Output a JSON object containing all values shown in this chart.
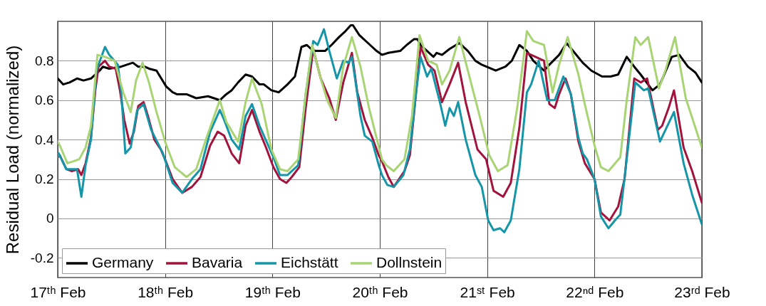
{
  "chart_data": {
    "type": "line",
    "ylabel": "Residual Load (normalized)",
    "xlim": [
      "--02-17",
      "--02-23"
    ],
    "ylim": [
      -0.3,
      1.0
    ],
    "xticks": [
      {
        "value": "--02-17",
        "label": "17ᵗʰ Feb"
      },
      {
        "value": "--02-18",
        "label": "18ᵗʰ Feb"
      },
      {
        "value": "--02-19",
        "label": "19ᵗʰ Feb"
      },
      {
        "value": "--02-20",
        "label": "20ᵗʰ Feb"
      },
      {
        "value": "--02-21",
        "label": "21ˢᵗ Feb"
      },
      {
        "value": "--02-22",
        "label": "22ⁿᵈ Feb"
      },
      {
        "value": "--02-23",
        "label": "23ʳᵈ Feb"
      }
    ],
    "yticks": [
      -0.2,
      0,
      0.2,
      0.4,
      0.6,
      0.8
    ],
    "grid": true,
    "legend": "bottom left",
    "line_style": "solid",
    "marker": "none",
    "series": [
      {
        "name": "Germany",
        "color": "#000000",
        "x": [
          "--02-17T00:00",
          "--02-17T01:12",
          "--02-17T02:38",
          "--02-17T04:19",
          "--02-17T05:46",
          "--02-17T07:26",
          "--02-17T09:22",
          "--02-17T10:05",
          "--02-17T11:31",
          "--02-17T14:10",
          "--02-17T16:48",
          "--02-17T18:00",
          "--02-17T19:26",
          "--02-17T20:24",
          "--02-17T22:05",
          "--02-18T00:14",
          "--02-18T01:41",
          "--02-18T02:38",
          "--02-18T04:48",
          "--02-18T06:58",
          "--02-18T09:36",
          "--02-18T12:14",
          "--02-18T13:41",
          "--02-18T14:53",
          "--02-18T16:19",
          "--02-18T18:00",
          "--02-18T19:26",
          "--02-18T21:07",
          "--02-18T22:05",
          "--02-18T23:46",
          "--02-19T01:26",
          "--02-19T03:22",
          "--02-19T05:02",
          "--02-19T06:29",
          "--02-19T07:41",
          "--02-19T08:38",
          "--02-19T09:36",
          "--02-19T11:46",
          "--02-19T13:12",
          "--02-19T14:53",
          "--02-19T16:19",
          "--02-19T17:31",
          "--02-19T18:00",
          "--02-19T19:26",
          "--02-19T21:50",
          "--02-19T23:17",
          "--02-20T00:29",
          "--02-20T01:55",
          "--02-20T04:34",
          "--02-20T06:00",
          "--02-20T07:41",
          "--02-20T08:24",
          "--02-20T09:07",
          "--02-20T12:00",
          "--02-20T12:43",
          "--02-20T13:55",
          "--02-20T15:36",
          "--02-20T17:46",
          "--02-20T19:41",
          "--02-20T21:22",
          "--02-20T22:48",
          "--02-21T01:55",
          "--02-21T04:05",
          "--02-21T05:31",
          "--02-21T07:12",
          "--02-21T08:53",
          "--02-21T10:19",
          "--02-21T12:43",
          "--02-21T13:55",
          "--02-21T16:05",
          "--02-21T17:46",
          "--02-21T19:12",
          "--02-21T21:22",
          "--02-21T23:17",
          "--02-22T01:41",
          "--02-22T03:36",
          "--02-22T05:17",
          "--02-22T07:12",
          "--02-22T08:53",
          "--02-22T10:19",
          "--02-22T12:58",
          "--02-22T14:38",
          "--02-22T17:17",
          "--02-22T18:58",
          "--02-22T20:53",
          "--02-22T22:34",
          "--02-23T00:00"
        ],
        "values": [
          0.71,
          0.68,
          0.69,
          0.71,
          0.7,
          0.71,
          0.75,
          0.77,
          0.76,
          0.77,
          0.79,
          0.77,
          0.77,
          0.76,
          0.75,
          0.67,
          0.64,
          0.63,
          0.63,
          0.61,
          0.62,
          0.6,
          0.63,
          0.65,
          0.69,
          0.73,
          0.72,
          0.68,
          0.68,
          0.65,
          0.64,
          0.68,
          0.72,
          0.87,
          0.88,
          0.86,
          0.85,
          0.85,
          0.88,
          0.92,
          0.95,
          0.98,
          0.98,
          0.93,
          0.88,
          0.85,
          0.83,
          0.84,
          0.85,
          0.88,
          0.91,
          0.91,
          0.88,
          0.82,
          0.84,
          0.83,
          0.86,
          0.89,
          0.85,
          0.8,
          0.78,
          0.75,
          0.77,
          0.8,
          0.88,
          0.85,
          0.8,
          0.75,
          0.78,
          0.83,
          0.89,
          0.85,
          0.79,
          0.75,
          0.72,
          0.72,
          0.73,
          0.82,
          0.77,
          0.73,
          0.65,
          0.68,
          0.82,
          0.83,
          0.77,
          0.74,
          0.69
        ]
      },
      {
        "name": "Bavaria",
        "color": "#a2143c",
        "x": [
          "--02-17T00:00",
          "--02-17T00:29",
          "--02-17T01:55",
          "--02-17T03:07",
          "--02-17T04:34",
          "--02-17T05:17",
          "--02-17T06:14",
          "--02-17T07:26",
          "--02-17T08:24",
          "--02-17T09:07",
          "--02-17T10:34",
          "--02-17T11:31",
          "--02-17T12:58",
          "--02-17T13:55",
          "--02-17T14:53",
          "--02-17T16:05",
          "--02-17T17:02",
          "--02-17T18:00",
          "--02-17T19:12",
          "--02-17T20:10",
          "--02-17T21:36",
          "--02-17T23:02",
          "--02-18T00:00",
          "--02-18T01:41",
          "--02-18T03:50",
          "--02-18T06:00",
          "--02-18T07:55",
          "--02-18T10:05",
          "--02-18T11:46",
          "--02-18T13:12",
          "--02-18T14:53",
          "--02-18T16:34",
          "--02-18T18:00",
          "--02-18T19:26",
          "--02-18T21:07",
          "--02-18T22:34",
          "--02-19T00:14",
          "--02-19T01:41",
          "--02-19T03:07",
          "--02-19T04:19",
          "--02-19T06:00",
          "--02-19T07:26",
          "--02-19T09:07",
          "--02-19T10:48",
          "--02-19T12:43",
          "--02-19T14:10",
          "--02-19T15:50",
          "--02-19T17:46",
          "--02-19T18:58",
          "--02-19T20:38",
          "--02-19T22:19",
          "--02-19T23:46",
          "--02-20T00:29",
          "--02-20T01:55",
          "--02-20T03:07",
          "--02-20T05:31",
          "--02-20T06:43",
          "--02-20T08:10",
          "--02-20T09:07",
          "--02-20T10:48",
          "--02-20T12:14",
          "--02-20T13:55",
          "--02-20T15:36",
          "--02-20T17:31",
          "--02-20T19:12",
          "--02-20T21:50",
          "--02-20T23:46",
          "--02-21T01:26",
          "--02-21T03:36",
          "--02-21T05:17",
          "--02-21T07:12",
          "--02-21T08:53",
          "--02-21T10:48",
          "--02-21T12:43",
          "--02-21T13:55",
          "--02-21T15:07",
          "--02-21T16:05",
          "--02-21T17:31",
          "--02-21T18:43",
          "--02-21T20:24",
          "--02-21T21:50",
          "--02-22T00:00",
          "--02-22T01:26",
          "--02-22T03:22",
          "--02-22T05:17",
          "--02-22T06:43",
          "--02-22T08:53",
          "--02-22T10:19",
          "--02-22T11:46",
          "--02-22T14:10",
          "--02-22T15:07",
          "--02-22T16:34",
          "--02-22T17:46",
          "--02-22T19:55",
          "--02-22T21:50",
          "--02-23T00:00"
        ],
        "values": [
          0.31,
          0.32,
          0.25,
          0.24,
          0.25,
          0.22,
          0.28,
          0.41,
          0.65,
          0.77,
          0.8,
          0.77,
          0.76,
          0.65,
          0.5,
          0.38,
          0.44,
          0.57,
          0.59,
          0.52,
          0.4,
          0.35,
          0.3,
          0.2,
          0.13,
          0.16,
          0.21,
          0.37,
          0.44,
          0.42,
          0.33,
          0.28,
          0.47,
          0.55,
          0.44,
          0.36,
          0.26,
          0.2,
          0.18,
          0.21,
          0.26,
          0.56,
          0.86,
          0.71,
          0.61,
          0.5,
          0.69,
          0.84,
          0.64,
          0.5,
          0.41,
          0.32,
          0.29,
          0.21,
          0.16,
          0.24,
          0.32,
          0.65,
          0.87,
          0.78,
          0.75,
          0.59,
          0.68,
          0.79,
          0.59,
          0.35,
          0.3,
          0.14,
          0.11,
          0.18,
          0.46,
          0.84,
          0.82,
          0.8,
          0.58,
          0.56,
          0.63,
          0.71,
          0.63,
          0.39,
          0.28,
          0.2,
          0.03,
          -0.01,
          0.06,
          0.2,
          0.71,
          0.69,
          0.71,
          0.45,
          0.47,
          0.56,
          0.65,
          0.36,
          0.24,
          0.08
        ]
      },
      {
        "name": "Eichstätt",
        "color": "#1596a8",
        "x": [
          "--02-17T00:00",
          "--02-17T00:14",
          "--02-17T01:55",
          "--02-17T04:19",
          "--02-17T05:17",
          "--02-17T06:14",
          "--02-17T07:26",
          "--02-17T08:38",
          "--02-17T10:05",
          "--02-17T10:34",
          "--02-17T11:31",
          "--02-17T13:26",
          "--02-17T14:10",
          "--02-17T15:07",
          "--02-17T16:19",
          "--02-17T17:46",
          "--02-17T19:12",
          "--02-17T20:53",
          "--02-17T23:31",
          "--02-18T01:41",
          "--02-18T03:50",
          "--02-18T06:00",
          "--02-18T07:55",
          "--02-18T10:05",
          "--02-18T12:14",
          "--02-18T13:12",
          "--02-18T14:53",
          "--02-18T16:34",
          "--02-18T18:00",
          "--02-18T19:26",
          "--02-18T21:07",
          "--02-19T00:14",
          "--02-19T01:41",
          "--02-19T03:22",
          "--02-19T05:46",
          "--02-19T07:26",
          "--02-19T09:07",
          "--02-19T10:05",
          "--02-19T11:31",
          "--02-19T12:43",
          "--02-19T14:24",
          "--02-19T15:50",
          "--02-19T17:02",
          "--02-19T17:46",
          "--02-19T19:41",
          "--02-19T20:38",
          "--02-19T22:19",
          "--02-19T23:46",
          "--02-20T00:29",
          "--02-20T01:41",
          "--02-20T03:07",
          "--02-20T05:17",
          "--02-20T06:43",
          "--02-20T08:10",
          "--02-20T09:07",
          "--02-20T10:34",
          "--02-20T11:31",
          "--02-20T13:26",
          "--02-20T14:38",
          "--02-20T15:36",
          "--02-20T16:34",
          "--02-20T17:31",
          "--02-20T19:12",
          "--02-20T21:22",
          "--02-20T22:48",
          "--02-21T00:14",
          "--02-21T01:26",
          "--02-21T02:53",
          "--02-21T03:50",
          "--02-21T05:17",
          "--02-21T07:12",
          "--02-21T08:53",
          "--02-21T09:50",
          "--02-21T11:31",
          "--02-21T13:26",
          "--02-21T15:07",
          "--02-21T17:02",
          "--02-21T18:43",
          "--02-21T20:24",
          "--02-21T21:22",
          "--02-21T22:19",
          "--02-22T00:00",
          "--02-22T01:26",
          "--02-22T03:07",
          "--02-22T04:34",
          "--02-22T05:46",
          "--02-22T07:12",
          "--02-22T09:07",
          "--02-22T11:02",
          "--02-22T12:00",
          "--02-22T14:38",
          "--02-22T16:05",
          "--02-22T17:46",
          "--02-22T19:55",
          "--02-22T21:50",
          "--02-23T00:00"
        ],
        "values": [
          0.31,
          0.33,
          0.25,
          0.25,
          0.11,
          0.27,
          0.4,
          0.75,
          0.84,
          0.87,
          0.83,
          0.78,
          0.65,
          0.33,
          0.36,
          0.55,
          0.58,
          0.45,
          0.33,
          0.18,
          0.13,
          0.2,
          0.25,
          0.44,
          0.55,
          0.5,
          0.4,
          0.35,
          0.52,
          0.58,
          0.47,
          0.31,
          0.22,
          0.22,
          0.27,
          0.63,
          0.9,
          0.88,
          0.96,
          0.85,
          0.71,
          0.8,
          0.79,
          0.82,
          0.52,
          0.42,
          0.39,
          0.27,
          0.22,
          0.17,
          0.16,
          0.22,
          0.35,
          0.65,
          0.82,
          0.72,
          0.76,
          0.59,
          0.47,
          0.56,
          0.52,
          0.59,
          0.4,
          0.22,
          0.16,
          -0.01,
          -0.06,
          -0.05,
          -0.07,
          -0.01,
          0.25,
          0.64,
          0.68,
          0.8,
          0.6,
          0.6,
          0.72,
          0.63,
          0.41,
          0.33,
          0.3,
          0.2,
          0.01,
          -0.05,
          -0.01,
          0.02,
          0.3,
          0.69,
          0.65,
          0.66,
          0.39,
          0.46,
          0.54,
          0.28,
          0.12,
          -0.03
        ]
      },
      {
        "name": "Dollnstein",
        "color": "#a8d474",
        "x": [
          "--02-17T00:00",
          "--02-17T00:29",
          "--02-17T02:10",
          "--02-17T04:48",
          "--02-17T06:14",
          "--02-17T07:26",
          "--02-17T08:53",
          "--02-17T10:34",
          "--02-17T12:43",
          "--02-17T14:38",
          "--02-17T16:19",
          "--02-17T17:31",
          "--02-17T18:58",
          "--02-17T20:24",
          "--02-17T22:05",
          "--02-18T00:00",
          "--02-18T02:10",
          "--02-18T04:48",
          "--02-18T06:58",
          "--02-18T09:07",
          "--02-18T12:14",
          "--02-18T13:41",
          "--02-18T16:19",
          "--02-18T18:00",
          "--02-18T19:26",
          "--02-18T21:36",
          "--02-18T23:46",
          "--02-19T01:41",
          "--02-19T03:22",
          "--02-19T05:46",
          "--02-19T07:26",
          "--02-19T08:53",
          "--02-19T10:48",
          "--02-19T12:14",
          "--02-19T14:10",
          "--02-19T15:50",
          "--02-19T17:46",
          "--02-19T19:41",
          "--02-19T21:36",
          "--02-20T00:29",
          "--02-20T01:26",
          "--02-20T03:07",
          "--02-20T05:31",
          "--02-20T07:12",
          "--02-20T08:53",
          "--02-20T10:48",
          "--02-20T12:43",
          "--02-20T13:55",
          "--02-20T15:36",
          "--02-20T17:46",
          "--02-20T19:41",
          "--02-20T22:19",
          "--02-21T00:29",
          "--02-21T02:24",
          "--02-21T04:34",
          "--02-21T06:43",
          "--02-21T08:53",
          "--02-21T10:19",
          "--02-21T12:43",
          "--02-21T14:38",
          "--02-21T16:05",
          "--02-21T18:00",
          "--02-21T20:24",
          "--02-21T21:50",
          "--02-22T00:00",
          "--02-22T01:26",
          "--02-22T03:07",
          "--02-22T05:46",
          "--02-22T07:12",
          "--02-22T09:07",
          "--02-22T10:19",
          "--02-22T12:00",
          "--02-22T14:24",
          "--02-22T15:50",
          "--02-22T18:00",
          "--02-22T20:24",
          "--02-23T00:00"
        ],
        "values": [
          0.39,
          0.37,
          0.28,
          0.3,
          0.36,
          0.47,
          0.83,
          0.82,
          0.8,
          0.64,
          0.54,
          0.7,
          0.79,
          0.69,
          0.54,
          0.39,
          0.26,
          0.21,
          0.25,
          0.4,
          0.6,
          0.49,
          0.39,
          0.59,
          0.71,
          0.58,
          0.35,
          0.25,
          0.24,
          0.3,
          0.63,
          0.88,
          0.71,
          0.6,
          0.51,
          0.77,
          0.92,
          0.77,
          0.56,
          0.3,
          0.27,
          0.24,
          0.3,
          0.52,
          0.93,
          0.8,
          0.78,
          0.68,
          0.75,
          0.92,
          0.75,
          0.52,
          0.32,
          0.24,
          0.27,
          0.56,
          0.95,
          0.9,
          0.88,
          0.64,
          0.78,
          0.92,
          0.73,
          0.58,
          0.37,
          0.26,
          0.24,
          0.31,
          0.6,
          0.92,
          0.88,
          0.92,
          0.66,
          0.75,
          0.92,
          0.61,
          0.36
        ]
      }
    ]
  }
}
